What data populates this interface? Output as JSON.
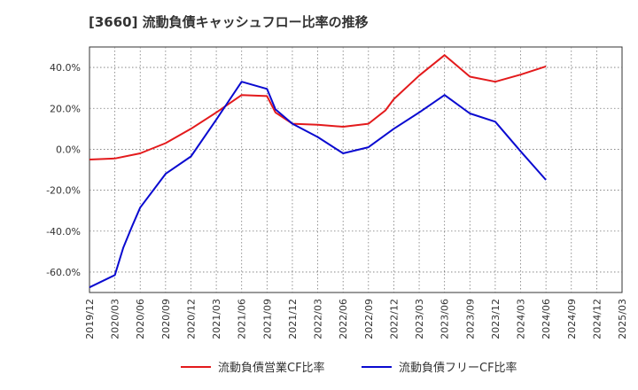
{
  "chart_data": {
    "type": "line",
    "title": "[3660]  流動負債キャッシュフロー比率の推移",
    "xlabel": "",
    "ylabel": "",
    "x": [
      "2019/12",
      "2020/03",
      "2020/06",
      "2020/09",
      "2020/12",
      "2021/03",
      "2021/06",
      "2021/09",
      "2021/12",
      "2022/03",
      "2022/06",
      "2022/09",
      "2022/12",
      "2023/03",
      "2023/06",
      "2023/09",
      "2023/12",
      "2024/03",
      "2024/06",
      "2024/09",
      "2024/12",
      "2025/03"
    ],
    "x_tick_labels": [
      "2019/12",
      "2020/03",
      "2020/06",
      "2020/09",
      "2020/12",
      "2021/03",
      "2021/06",
      "2021/09",
      "2021/12",
      "2022/03",
      "2022/06",
      "2022/09",
      "2022/12",
      "2023/03",
      "2023/06",
      "2023/09",
      "2023/12",
      "2024/03",
      "2024/06",
      "2024/09",
      "2024/12",
      "2025/03"
    ],
    "y_ticks": [
      40,
      20,
      0,
      -20,
      -40,
      -60
    ],
    "y_tick_labels": [
      "40.0%",
      "20.0%",
      "0.0%",
      "-20.0%",
      "-40.0%",
      "-60.0%"
    ],
    "ylim": [
      -70,
      50
    ],
    "grid": true,
    "legend_position": "bottom",
    "series": [
      {
        "name": "流動負債営業CF比率",
        "color": "#e31a1c",
        "points": [
          [
            "2019/12",
            -5.0
          ],
          [
            "2020/03",
            -4.5
          ],
          [
            "2020/06",
            -2.0
          ],
          [
            "2020/09",
            3.0
          ],
          [
            "2020/12",
            10.0
          ],
          [
            "2021/03",
            18.0
          ],
          [
            "2021/06",
            26.5
          ],
          [
            "2021/09",
            26.0
          ],
          [
            "2021/10",
            18.0
          ],
          [
            "2021/12",
            12.5
          ],
          [
            "2022/03",
            12.0
          ],
          [
            "2022/06",
            11.0
          ],
          [
            "2022/09",
            12.5
          ],
          [
            "2022/11",
            19.0
          ],
          [
            "2022/12",
            24.5
          ],
          [
            "2023/03",
            36.0
          ],
          [
            "2023/06",
            46.0
          ],
          [
            "2023/09",
            35.5
          ],
          [
            "2023/12",
            33.0
          ],
          [
            "2024/03",
            36.5
          ],
          [
            "2024/06",
            40.5
          ]
        ]
      },
      {
        "name": "流動負債フリーCF比率",
        "color": "#0a0ad0",
        "points": [
          [
            "2019/12",
            -67.5
          ],
          [
            "2020/03",
            -61.5
          ],
          [
            "2020/04",
            -48.0
          ],
          [
            "2020/05",
            -38.0
          ],
          [
            "2020/06",
            -28.5
          ],
          [
            "2020/09",
            -12.0
          ],
          [
            "2020/12",
            -3.5
          ],
          [
            "2021/03",
            14.5
          ],
          [
            "2021/06",
            33.0
          ],
          [
            "2021/09",
            29.5
          ],
          [
            "2021/10",
            19.5
          ],
          [
            "2021/12",
            12.5
          ],
          [
            "2022/03",
            6.0
          ],
          [
            "2022/06",
            -2.0
          ],
          [
            "2022/09",
            1.0
          ],
          [
            "2022/12",
            10.0
          ],
          [
            "2023/03",
            18.0
          ],
          [
            "2023/06",
            26.5
          ],
          [
            "2023/09",
            17.5
          ],
          [
            "2023/12",
            13.5
          ],
          [
            "2024/03",
            -1.0
          ],
          [
            "2024/06",
            -15.0
          ]
        ]
      }
    ]
  }
}
